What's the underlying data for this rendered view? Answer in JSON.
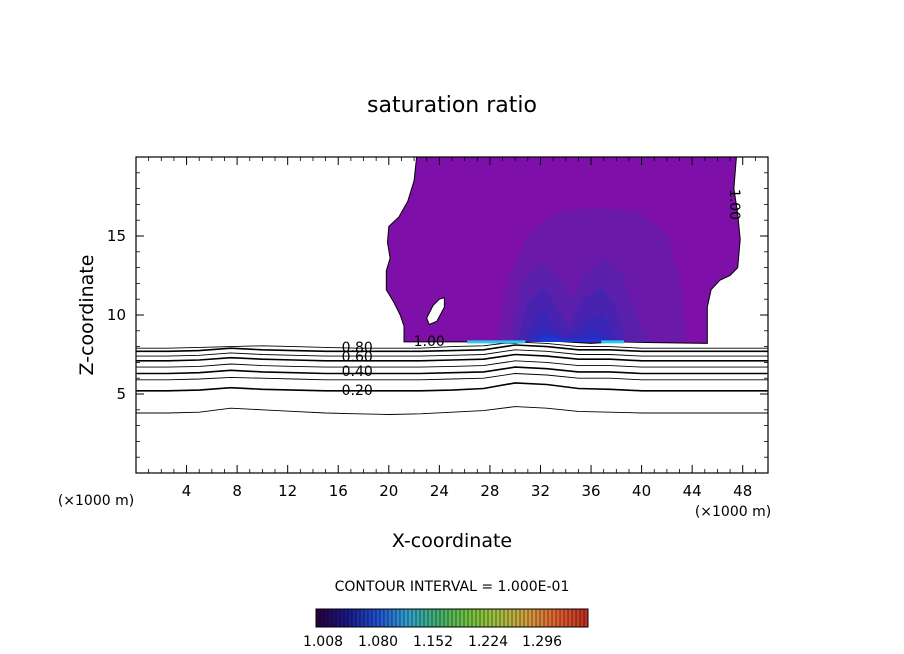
{
  "chart_data": {
    "type": "contour",
    "title": "saturation ratio",
    "xlabel": "X-coordinate",
    "ylabel": "Z-coordinate",
    "x_unit": "(×1000 m)",
    "x_unit_right": "(×1000 m)",
    "xlim": [
      0,
      50
    ],
    "ylim": [
      0,
      20
    ],
    "xticks": [
      4,
      8,
      12,
      16,
      20,
      24,
      28,
      32,
      36,
      40,
      44,
      48
    ],
    "yticks": [
      5,
      10,
      15
    ],
    "grid": false,
    "contour_interval_text": "CONTOUR INTERVAL = 1.000E-01",
    "colorbar": {
      "ticks": [
        "1.008",
        "1.080",
        "1.152",
        "1.224",
        "1.296"
      ],
      "colors": [
        "#2a0040",
        "#1a1a8a",
        "#2050d0",
        "#30a0d0",
        "#40b070",
        "#70c040",
        "#a0c040",
        "#d0a040",
        "#e06030",
        "#c03020"
      ]
    },
    "contour_labels": [
      {
        "text": "0.80",
        "x": 17.5,
        "y": 7.9
      },
      {
        "text": "0.60",
        "x": 17.5,
        "y": 7.3
      },
      {
        "text": "0.40",
        "x": 17.5,
        "y": 6.4
      },
      {
        "text": "0.20",
        "x": 17.5,
        "y": 5.2
      },
      {
        "text": "1.00",
        "x": 23.2,
        "y": 8.3
      },
      {
        "text": "1.00",
        "x": 47.3,
        "y": 17.0
      }
    ],
    "contour_lines": [
      {
        "level": 0.9,
        "z": [
          7.9,
          7.9,
          7.95,
          8.0,
          8.05,
          8.0,
          7.95,
          7.9,
          7.9,
          7.9,
          8.0,
          8.05,
          8.3,
          8.2,
          8.0,
          8.0,
          7.9,
          7.9,
          7.9,
          7.9,
          7.9
        ]
      },
      {
        "level": 0.8,
        "z": [
          7.7,
          7.7,
          7.75,
          7.9,
          7.8,
          7.75,
          7.7,
          7.7,
          7.7,
          7.7,
          7.75,
          7.8,
          8.1,
          8.0,
          7.8,
          7.8,
          7.7,
          7.7,
          7.7,
          7.7,
          7.7
        ]
      },
      {
        "level": 0.7,
        "z": [
          7.4,
          7.4,
          7.45,
          7.6,
          7.5,
          7.45,
          7.4,
          7.4,
          7.4,
          7.4,
          7.45,
          7.5,
          7.8,
          7.7,
          7.5,
          7.5,
          7.4,
          7.4,
          7.4,
          7.4,
          7.4
        ]
      },
      {
        "level": 0.6,
        "z": [
          7.1,
          7.1,
          7.15,
          7.3,
          7.2,
          7.15,
          7.1,
          7.1,
          7.1,
          7.1,
          7.15,
          7.2,
          7.5,
          7.4,
          7.2,
          7.2,
          7.1,
          7.1,
          7.1,
          7.1,
          7.1
        ]
      },
      {
        "level": 0.5,
        "z": [
          6.7,
          6.7,
          6.75,
          6.9,
          6.8,
          6.75,
          6.7,
          6.7,
          6.7,
          6.7,
          6.75,
          6.8,
          7.1,
          7.0,
          6.8,
          6.8,
          6.7,
          6.7,
          6.7,
          6.7,
          6.7
        ]
      },
      {
        "level": 0.4,
        "z": [
          6.3,
          6.3,
          6.35,
          6.5,
          6.4,
          6.35,
          6.3,
          6.3,
          6.3,
          6.3,
          6.35,
          6.4,
          6.7,
          6.6,
          6.4,
          6.4,
          6.3,
          6.3,
          6.3,
          6.3,
          6.3
        ]
      },
      {
        "level": 0.3,
        "z": [
          5.9,
          5.9,
          5.95,
          6.05,
          6.0,
          5.95,
          5.9,
          5.9,
          5.9,
          5.9,
          5.95,
          6.0,
          6.3,
          6.2,
          6.0,
          6.0,
          5.9,
          5.9,
          5.9,
          5.9,
          5.9
        ]
      },
      {
        "level": 0.2,
        "z": [
          5.2,
          5.2,
          5.25,
          5.4,
          5.3,
          5.25,
          5.2,
          5.2,
          5.2,
          5.2,
          5.25,
          5.35,
          5.7,
          5.6,
          5.35,
          5.3,
          5.2,
          5.2,
          5.2,
          5.2,
          5.2
        ]
      },
      {
        "level": 0.1,
        "z": [
          3.8,
          3.8,
          3.85,
          4.1,
          4.0,
          3.9,
          3.8,
          3.75,
          3.7,
          3.75,
          3.85,
          3.95,
          4.2,
          4.1,
          3.9,
          3.85,
          3.8,
          3.8,
          3.8,
          3.8,
          3.8
        ]
      }
    ],
    "cloud_outline": [
      [
        22.2,
        20
      ],
      [
        22.0,
        18.5
      ],
      [
        21.5,
        17.2
      ],
      [
        20.8,
        16.2
      ],
      [
        20.0,
        15.6
      ],
      [
        19.9,
        14.6
      ],
      [
        20.1,
        13.6
      ],
      [
        19.8,
        12.8
      ],
      [
        19.8,
        11.6
      ],
      [
        20.4,
        10.8
      ],
      [
        20.9,
        10.0
      ],
      [
        21.2,
        9.3
      ],
      [
        21.2,
        8.3
      ],
      [
        26,
        8.3
      ],
      [
        30,
        8.2
      ],
      [
        32,
        8.4
      ],
      [
        34,
        8.3
      ],
      [
        36,
        8.2
      ],
      [
        38,
        8.3
      ],
      [
        41,
        8.25
      ],
      [
        45.2,
        8.2
      ],
      [
        45.2,
        10.5
      ],
      [
        45.5,
        11.6
      ],
      [
        46.2,
        12.2
      ],
      [
        47.0,
        12.5
      ],
      [
        47.6,
        13.0
      ],
      [
        47.8,
        14.8
      ],
      [
        47.6,
        16.4
      ],
      [
        47.3,
        18.0
      ],
      [
        47.5,
        20
      ]
    ],
    "cloud_hole": [
      [
        23.0,
        9.8
      ],
      [
        23.5,
        10.6
      ],
      [
        24.0,
        11.0
      ],
      [
        24.4,
        11.1
      ],
      [
        24.4,
        10.5
      ],
      [
        23.8,
        9.6
      ],
      [
        23.2,
        9.4
      ]
    ],
    "cloud_levels": [
      {
        "value": 1.03,
        "color": "#7e0fa8",
        "outline": "cloud"
      },
      {
        "value": 1.04,
        "color": "#6a19a8",
        "points": [
          [
            28.5,
            8.3
          ],
          [
            29.5,
            12.5
          ],
          [
            31.0,
            15.0
          ],
          [
            33.0,
            16.4
          ],
          [
            36.0,
            16.8
          ],
          [
            39.5,
            16.6
          ],
          [
            42.0,
            15.2
          ],
          [
            43.0,
            12.5
          ],
          [
            43.5,
            8.3
          ]
        ]
      },
      {
        "value": 1.05,
        "color": "#5a20ac",
        "points": [
          [
            29.5,
            8.3
          ],
          [
            30.5,
            12.0
          ],
          [
            32.0,
            13.3
          ],
          [
            33.5,
            12.3
          ],
          [
            34.5,
            11.0
          ],
          [
            35.5,
            12.6
          ],
          [
            37.0,
            13.6
          ],
          [
            38.5,
            12.5
          ],
          [
            39.5,
            10.0
          ],
          [
            40.5,
            8.3
          ]
        ]
      },
      {
        "value": 1.06,
        "color": "#4a22b0",
        "points": [
          [
            30.2,
            8.3
          ],
          [
            31.0,
            10.8
          ],
          [
            32.2,
            11.8
          ],
          [
            33.3,
            10.6
          ],
          [
            34.3,
            9.2
          ],
          [
            35.3,
            11.0
          ],
          [
            36.8,
            11.8
          ],
          [
            38.0,
            10.5
          ],
          [
            38.8,
            8.3
          ]
        ]
      },
      {
        "value": 1.07,
        "color": "#3a26b6",
        "points": [
          [
            30.8,
            8.3
          ],
          [
            31.6,
            10.0
          ],
          [
            32.4,
            10.3
          ],
          [
            33.2,
            9.2
          ],
          [
            34.0,
            8.6
          ],
          [
            35.6,
            9.6
          ],
          [
            36.8,
            10.1
          ],
          [
            37.6,
            9.2
          ],
          [
            38.2,
            8.3
          ]
        ]
      },
      {
        "value": 1.08,
        "color": "#2a2cc0",
        "points": [
          [
            31.2,
            8.3
          ],
          [
            32.0,
            9.1
          ],
          [
            33.0,
            8.9
          ],
          [
            34.0,
            8.4
          ],
          [
            35.0,
            8.7
          ],
          [
            36.2,
            9.0
          ],
          [
            37.4,
            8.6
          ],
          [
            37.8,
            8.3
          ]
        ]
      },
      {
        "value": 1.1,
        "color": "#1838d8",
        "points": [
          [
            31.6,
            8.3
          ],
          [
            32.4,
            8.65
          ],
          [
            33.4,
            8.5
          ],
          [
            35.2,
            8.4
          ],
          [
            36.4,
            8.5
          ],
          [
            37.2,
            8.3
          ]
        ]
      }
    ],
    "cyan_streaks": [
      {
        "x1": 26.2,
        "x2": 30.8,
        "z": 8.3,
        "color": "#30c8e8"
      },
      {
        "x1": 36.8,
        "x2": 38.6,
        "z": 8.3,
        "color": "#30c8e8"
      }
    ]
  }
}
